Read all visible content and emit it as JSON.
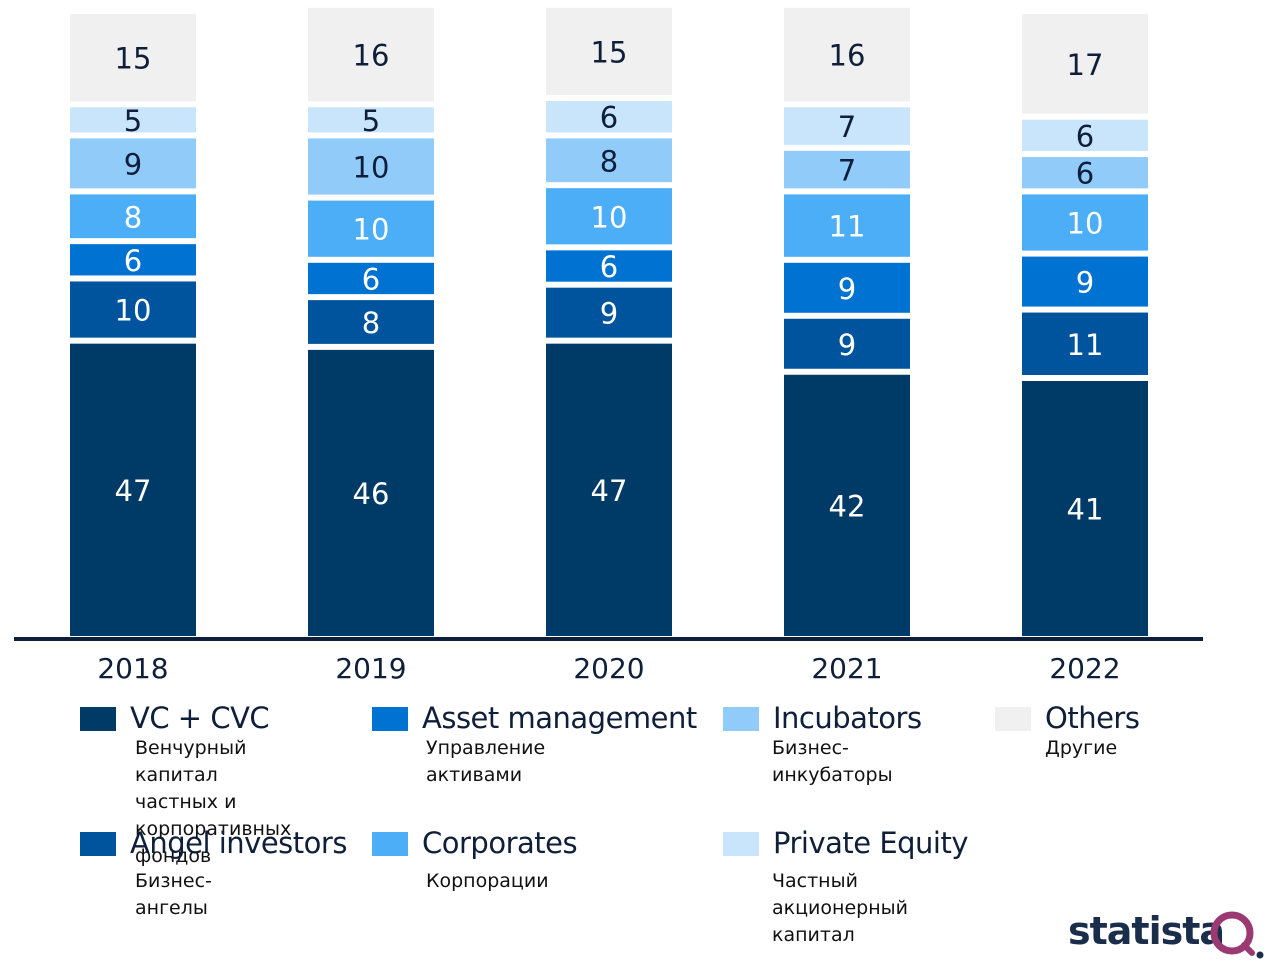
{
  "chart_data": {
    "type": "bar",
    "stacked": true,
    "title": "",
    "xlabel": "",
    "ylabel": "",
    "ylim": [
      0,
      100
    ],
    "grid": false,
    "categories": [
      "2018",
      "2019",
      "2020",
      "2021",
      "2022"
    ],
    "series": [
      {
        "name": "VC + CVC",
        "subtitle": "Венчурный капитал\nчастных и\nкорпоративных фондов",
        "color": "#003a66",
        "label_color": "#ffffff",
        "values": [
          47,
          46,
          47,
          42,
          41
        ]
      },
      {
        "name": "Angel investors",
        "subtitle": "Бизнес-ангелы",
        "color": "#00549d",
        "label_color": "#ffffff",
        "values": [
          10,
          8,
          9,
          9,
          11
        ]
      },
      {
        "name": "Asset management",
        "subtitle": "Управление активами",
        "color": "#0072d2",
        "label_color": "#ffffff",
        "values": [
          6,
          6,
          6,
          9,
          9
        ]
      },
      {
        "name": "Corporates",
        "subtitle": "Корпорации",
        "color": "#4baef7",
        "label_color": "#ffffff",
        "values": [
          8,
          10,
          10,
          11,
          10
        ]
      },
      {
        "name": "Incubators",
        "subtitle": "Бизнес-инкубаторы",
        "color": "#90cbfa",
        "label_color": "#0f1f3a",
        "values": [
          9,
          10,
          8,
          7,
          6
        ]
      },
      {
        "name": "Private Equity",
        "subtitle": "Частный акционерный капитал",
        "color": "#c8e5fb",
        "label_color": "#0f1f3a",
        "values": [
          5,
          5,
          6,
          7,
          6
        ]
      },
      {
        "name": "Others",
        "subtitle": "Другие",
        "color": "#f0f0f0",
        "label_color": "#0f1f3a",
        "values": [
          15,
          16,
          15,
          16,
          17
        ]
      }
    ],
    "legend_position": "bottom",
    "axis_color": "#0f1f3a"
  },
  "legend": {
    "vc": {
      "label": "VC + CVC",
      "sub": "Венчурный капитал\nчастных и\nкорпоративных фондов",
      "color": "#003a66"
    },
    "asset": {
      "label": "Asset management",
      "sub": "Управление активами",
      "color": "#0072d2"
    },
    "incubators": {
      "label": "Incubators",
      "sub": "Бизнес-инкубаторы",
      "color": "#90cbfa"
    },
    "others": {
      "label": "Others",
      "sub": "Другие",
      "color": "#f0f0f0"
    },
    "angel": {
      "label": "Angel investors",
      "sub": "Бизнес-ангелы",
      "color": "#00549d"
    },
    "corporates": {
      "label": "Corporates",
      "sub": "Корпорации",
      "color": "#4baef7"
    },
    "pe": {
      "label": "Private Equity",
      "sub": "Частный акционерный капитал",
      "color": "#c8e5fb"
    }
  },
  "logo": {
    "text": "statista",
    "accent_color": "#9b3a72"
  }
}
